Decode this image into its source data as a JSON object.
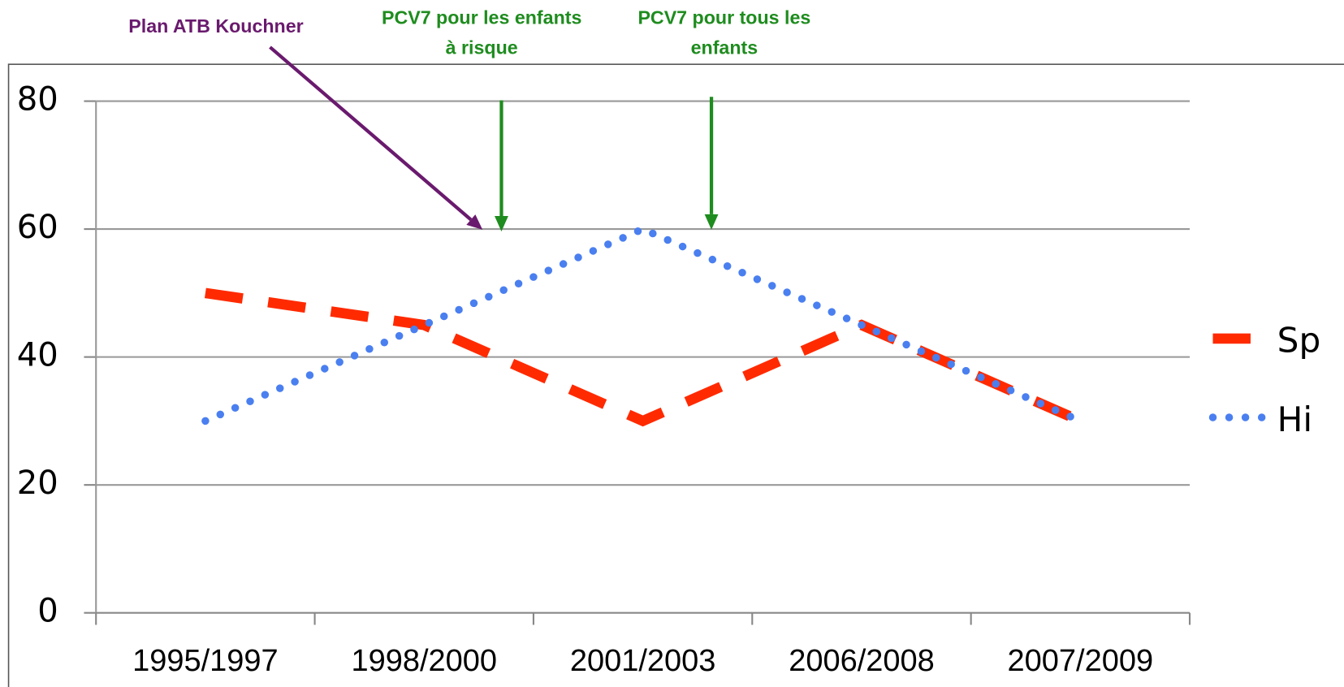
{
  "chart_data": {
    "type": "line",
    "categories": [
      "1995/1997",
      "1998/2000",
      "2001/2003",
      "2006/2008",
      "2007/2009"
    ],
    "series": [
      {
        "name": "Sp",
        "color": "#ff2a00",
        "style": "dashed",
        "values": [
          50,
          45,
          30,
          45,
          30
        ]
      },
      {
        "name": "Hi",
        "color": "#4a7ff0",
        "style": "dotted",
        "values": [
          30,
          45,
          60,
          45,
          30
        ]
      }
    ],
    "ylim": [
      0,
      80
    ],
    "yticks": [
      0,
      20,
      40,
      60,
      80
    ],
    "grid": true,
    "legend": "right",
    "annotations": [
      {
        "text": [
          "Plan ATB Kouchner"
        ],
        "color": "#6a1a6e"
      },
      {
        "text": [
          "PCV7 pour les enfants",
          "à risque"
        ],
        "color": "#1e8c1e"
      },
      {
        "text": [
          "PCV7 pour tous les",
          "enfants"
        ],
        "color": "#1e8c1e"
      }
    ]
  }
}
